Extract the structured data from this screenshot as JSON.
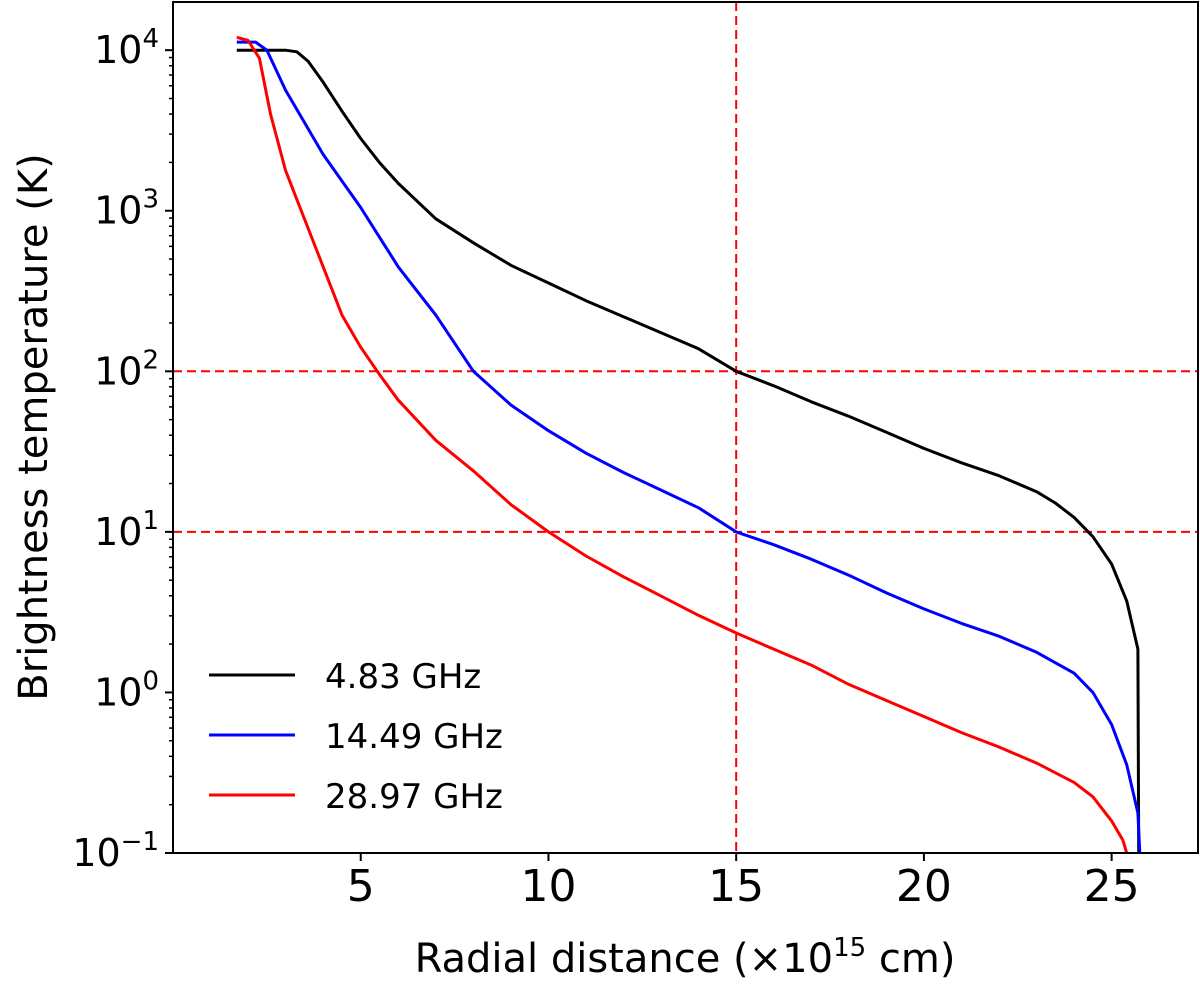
{
  "chart_data": {
    "type": "line",
    "title": "",
    "xlabel": {
      "main": "Radial distance (×10",
      "exp": "15",
      "tail": " cm)"
    },
    "ylabel": "Brightness temperature (K)",
    "xlim": [
      0,
      27.3
    ],
    "ylim_log10": [
      -1,
      4.3
    ],
    "yscale": "log",
    "x_ticks": [
      5,
      10,
      15,
      20,
      25
    ],
    "y_ticks": [
      {
        "base": "10",
        "exp": "4",
        "log": 4
      },
      {
        "base": "10",
        "exp": "3",
        "log": 3
      },
      {
        "base": "10",
        "exp": "2",
        "log": 2
      },
      {
        "base": "10",
        "exp": "1",
        "log": 1
      },
      {
        "base": "10",
        "exp": "0",
        "log": 0
      },
      {
        "base": "10",
        "exp": "−1",
        "log": -1
      }
    ],
    "reference_lines": {
      "color": "#ff0000",
      "horizontal_log": [
        2,
        1
      ],
      "vertical": [
        15
      ]
    },
    "legend_position": "lower-left",
    "series": [
      {
        "name": "4.83 GHz",
        "color": "#000000",
        "points": [
          [
            1.7,
            4.0
          ],
          [
            2.5,
            4.0
          ],
          [
            3.0,
            4.0
          ],
          [
            3.3,
            3.99
          ],
          [
            3.6,
            3.93
          ],
          [
            4.0,
            3.8
          ],
          [
            4.5,
            3.62
          ],
          [
            5.0,
            3.45
          ],
          [
            5.5,
            3.3
          ],
          [
            6.0,
            3.17
          ],
          [
            7.0,
            2.95
          ],
          [
            8.0,
            2.8
          ],
          [
            9.0,
            2.66
          ],
          [
            10.0,
            2.55
          ],
          [
            11.0,
            2.44
          ],
          [
            12.0,
            2.34
          ],
          [
            13.0,
            2.24
          ],
          [
            14.0,
            2.14
          ],
          [
            15.0,
            2.0
          ],
          [
            16.0,
            1.91
          ],
          [
            17.0,
            1.81
          ],
          [
            18.0,
            1.72
          ],
          [
            19.0,
            1.62
          ],
          [
            20.0,
            1.52
          ],
          [
            21.0,
            1.43
          ],
          [
            22.0,
            1.35
          ],
          [
            23.0,
            1.25
          ],
          [
            23.5,
            1.18
          ],
          [
            24.0,
            1.09
          ],
          [
            24.5,
            0.97
          ],
          [
            25.0,
            0.8
          ],
          [
            25.4,
            0.57
          ],
          [
            25.7,
            0.27
          ],
          [
            25.72,
            -1.0
          ]
        ]
      },
      {
        "name": "14.49 GHz",
        "color": "#0000ff",
        "points": [
          [
            1.7,
            4.05
          ],
          [
            2.2,
            4.05
          ],
          [
            2.5,
            4.0
          ],
          [
            3.0,
            3.75
          ],
          [
            3.5,
            3.55
          ],
          [
            4.0,
            3.35
          ],
          [
            5.0,
            3.02
          ],
          [
            6.0,
            2.65
          ],
          [
            7.0,
            2.35
          ],
          [
            8.0,
            2.0
          ],
          [
            9.0,
            1.79
          ],
          [
            10.0,
            1.63
          ],
          [
            11.0,
            1.49
          ],
          [
            12.0,
            1.37
          ],
          [
            13.0,
            1.26
          ],
          [
            14.0,
            1.15
          ],
          [
            15.0,
            1.0
          ],
          [
            16.0,
            0.92
          ],
          [
            17.0,
            0.83
          ],
          [
            18.0,
            0.73
          ],
          [
            19.0,
            0.62
          ],
          [
            20.0,
            0.52
          ],
          [
            21.0,
            0.43
          ],
          [
            22.0,
            0.35
          ],
          [
            23.0,
            0.25
          ],
          [
            24.0,
            0.12
          ],
          [
            24.5,
            0.0
          ],
          [
            25.0,
            -0.2
          ],
          [
            25.4,
            -0.45
          ],
          [
            25.7,
            -0.75
          ],
          [
            25.75,
            -1.0
          ]
        ]
      },
      {
        "name": "28.97 GHz",
        "color": "#ff0000",
        "points": [
          [
            1.7,
            4.08
          ],
          [
            2.0,
            4.06
          ],
          [
            2.3,
            3.95
          ],
          [
            2.6,
            3.6
          ],
          [
            3.0,
            3.25
          ],
          [
            3.5,
            2.95
          ],
          [
            4.0,
            2.65
          ],
          [
            4.5,
            2.35
          ],
          [
            5.0,
            2.15
          ],
          [
            5.5,
            1.98
          ],
          [
            6.0,
            1.82
          ],
          [
            7.0,
            1.57
          ],
          [
            8.0,
            1.38
          ],
          [
            9.0,
            1.17
          ],
          [
            10.0,
            1.0
          ],
          [
            11.0,
            0.85
          ],
          [
            12.0,
            0.72
          ],
          [
            13.0,
            0.6
          ],
          [
            14.0,
            0.48
          ],
          [
            15.0,
            0.37
          ],
          [
            16.0,
            0.27
          ],
          [
            17.0,
            0.17
          ],
          [
            18.0,
            0.05
          ],
          [
            19.0,
            -0.05
          ],
          [
            20.0,
            -0.15
          ],
          [
            21.0,
            -0.25
          ],
          [
            22.0,
            -0.34
          ],
          [
            23.0,
            -0.44
          ],
          [
            24.0,
            -0.56
          ],
          [
            24.5,
            -0.65
          ],
          [
            25.0,
            -0.8
          ],
          [
            25.3,
            -0.92
          ],
          [
            25.4,
            -1.0
          ]
        ]
      }
    ]
  }
}
